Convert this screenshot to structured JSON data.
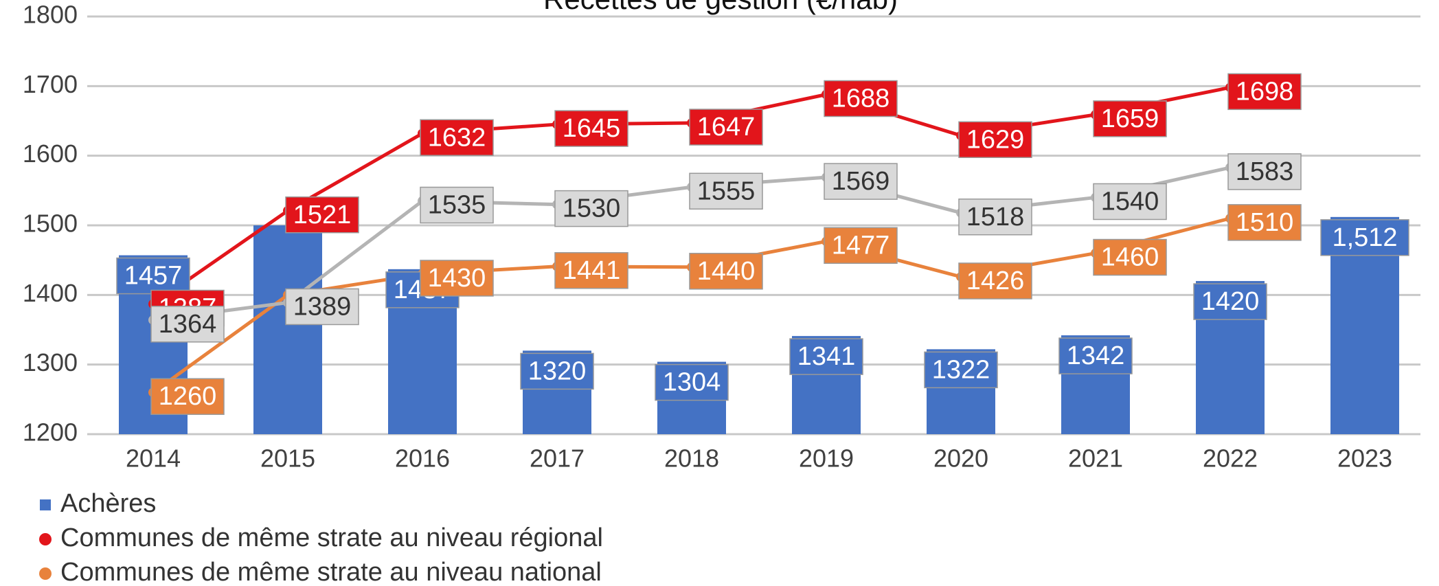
{
  "chart_data": {
    "type": "bar-line",
    "title": "Recettes de gestion (€/hab)",
    "categories": [
      "2014",
      "2015",
      "2016",
      "2017",
      "2018",
      "2019",
      "2020",
      "2021",
      "2022",
      "2023"
    ],
    "ylim": [
      1200,
      1800
    ],
    "yticks": [
      1200,
      1300,
      1400,
      1500,
      1600,
      1700,
      1800
    ],
    "grid": true,
    "series": [
      {
        "name": "Achères",
        "type": "bar",
        "color": "#4472c4",
        "values": [
          1457,
          1500,
          1437,
          1320,
          1304,
          1341,
          1322,
          1342,
          1420,
          1512
        ],
        "value_labels": [
          "1457",
          null,
          "1437",
          "1320",
          "1304",
          "1341",
          "1322",
          "1342",
          "1420",
          "1,512"
        ]
      },
      {
        "name": "Communes de même strate  au niveau régional",
        "type": "line",
        "color": "#e2151b",
        "values": [
          1387,
          1521,
          1632,
          1645,
          1647,
          1688,
          1629,
          1659,
          1698,
          null
        ]
      },
      {
        "name": "Communes de même strate  au niveau national",
        "type": "line",
        "color": "#e8823c",
        "values": [
          1260,
          1400,
          1430,
          1441,
          1440,
          1477,
          1426,
          1460,
          1510,
          null
        ],
        "value_labels": [
          "1260",
          null,
          "1430",
          "1441",
          "1440",
          "1477",
          "1426",
          "1460",
          "1510",
          null
        ]
      },
      {
        "type": "line",
        "color": "#b4b4b4",
        "values": [
          1364,
          1389,
          1535,
          1530,
          1555,
          1569,
          1518,
          1540,
          1583,
          null
        ]
      }
    ]
  }
}
